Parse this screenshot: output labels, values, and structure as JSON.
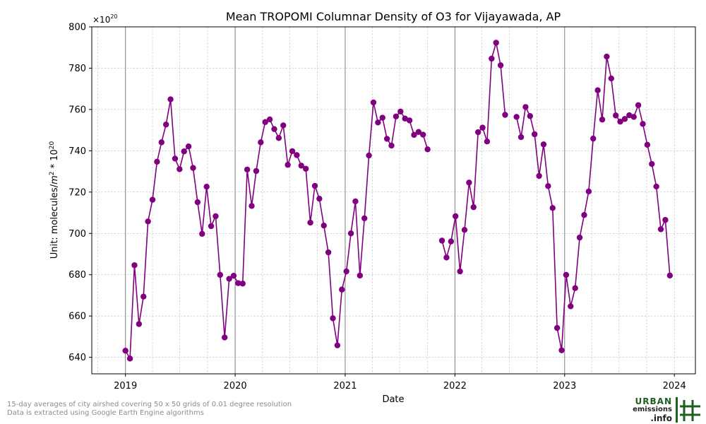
{
  "chart_data": {
    "type": "line",
    "title": "Mean TROPOMI Columnar Density of O3 for Vijayawada, AP",
    "xlabel": "Date",
    "ylabel": "Unit: molecules/m^2 * 10^20",
    "y_offset_label": "×10^20",
    "xlim": [
      "2018-09-11",
      "2024-03-11"
    ],
    "ylim": [
      632,
      800
    ],
    "x_ticks": [
      "2019",
      "2020",
      "2021",
      "2022",
      "2023",
      "2024"
    ],
    "y_ticks": [
      640,
      660,
      680,
      700,
      720,
      740,
      760,
      780,
      800
    ],
    "grid": true,
    "line_color": "#800080",
    "marker": "circle",
    "series": [
      {
        "segments": [
          {
            "start": "2019-01-01",
            "interval_days": 15,
            "values": [
              643.2,
              639.4,
              684.6,
              656.1,
              669.4,
              705.8,
              716.3,
              734.7,
              744.1,
              752.7,
              764.9,
              736.2,
              731.1,
              739.7,
              742.1,
              731.7,
              715.1,
              699.8,
              722.6,
              703.5,
              708.3,
              679.9,
              649.6,
              678,
              679.5,
              675.9,
              675.7,
              730.9,
              713.3,
              730.2,
              744.1,
              753.9,
              755.2,
              750.5,
              746.2,
              752.3,
              733.2,
              739.8,
              737.9,
              732.8,
              731.3,
              705.2,
              723,
              716.8,
              703.8,
              690.8,
              658.9,
              645.8,
              672.8,
              681.6,
              700,
              715.5,
              679.6,
              707.3,
              737.7,
              763.4,
              753.7,
              756,
              745.8,
              742.5,
              756.6,
              759,
              755.6,
              754.7,
              747.7,
              749.1,
              747.8,
              740.7
            ]
          },
          {
            "start": "2021-11-19",
            "interval_days": 15,
            "values": [
              696.5,
              688.3,
              696.1,
              708.3,
              681.6,
              701.7,
              724.6,
              712.7,
              749,
              751.2,
              744.5,
              784.6,
              792.3,
              781.4,
              757.4
            ]
          },
          {
            "start": "2022-07-25",
            "interval_days": 15,
            "values": [
              756.4,
              746.6,
              761.2,
              756.8,
              748,
              727.8,
              743.1,
              722.9,
              712.3,
              654.2,
              643.4,
              679.9,
              664.7,
              673.5,
              698,
              708.9,
              720.3,
              745.9,
              769.3,
              755.1,
              785.6,
              775,
              757.1,
              754.1,
              755.4,
              757.2,
              756.4,
              762.1,
              753,
              742.9,
              733.6,
              722.7,
              702,
              706.5,
              679.6
            ]
          }
        ]
      }
    ]
  },
  "footnote": {
    "line1": "15-day averages of city airshed covering 50 x 50 grids of 0.01 degree resolution",
    "line2": "Data is extracted using Google Earth Engine algorithms"
  },
  "logo": {
    "word1": "URBAN",
    "word2": "emissions",
    "word3": ".info",
    "green": "#1e5e1e"
  }
}
